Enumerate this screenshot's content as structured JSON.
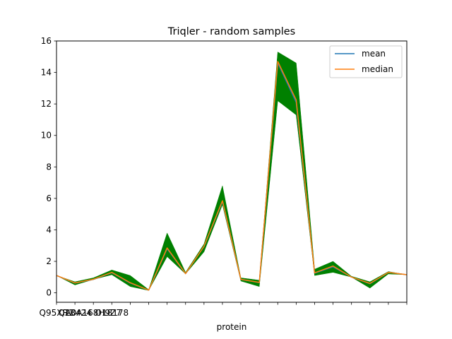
{
  "chart_data": {
    "type": "line",
    "title": "Triqler - random samples",
    "xlabel": "protein",
    "ylabel": "",
    "ylim": [
      -0.6,
      16
    ],
    "yticks": [
      0,
      2,
      4,
      6,
      8,
      10,
      12,
      14,
      16
    ],
    "ytick_labels": [
      "0",
      "2",
      "4",
      "6",
      "8",
      "10",
      "12",
      "14",
      "16"
    ],
    "x": [
      0,
      1,
      2,
      3,
      4,
      5,
      6,
      7,
      8,
      9,
      10,
      11,
      12,
      13,
      14,
      15,
      16,
      17,
      18,
      19
    ],
    "xlim": [
      0,
      19
    ],
    "xtick_labels": [
      "Q95XR1",
      "Q23424",
      "A0A168H9Z7",
      "O18178",
      "",
      "",
      "",
      "",
      "",
      "",
      "",
      "",
      "",
      "",
      "",
      "",
      "",
      "",
      "",
      ""
    ],
    "band": {
      "color": "#008000",
      "lower": [
        1.1,
        0.5,
        0.85,
        1.15,
        0.4,
        0.15,
        2.3,
        1.2,
        2.6,
        5.6,
        0.75,
        0.4,
        12.2,
        11.3,
        1.1,
        1.3,
        1.0,
        0.3,
        1.2,
        1.15
      ],
      "upper": [
        1.1,
        0.7,
        0.95,
        1.45,
        1.1,
        0.2,
        3.8,
        1.3,
        3.1,
        6.8,
        0.95,
        0.8,
        15.3,
        14.6,
        1.5,
        2.0,
        1.05,
        0.7,
        1.35,
        1.15
      ]
    },
    "series": [
      {
        "name": "mean",
        "color": "#1f77b4",
        "values": [
          1.1,
          0.62,
          0.85,
          1.28,
          0.62,
          0.17,
          2.8,
          1.22,
          2.95,
          5.8,
          0.85,
          0.65,
          14.6,
          12.1,
          1.25,
          1.65,
          1.0,
          0.58,
          1.3,
          1.15
        ]
      },
      {
        "name": "median",
        "color": "#ff7f0e",
        "values": [
          1.1,
          0.63,
          0.86,
          1.3,
          0.64,
          0.17,
          2.85,
          1.22,
          2.96,
          5.85,
          0.86,
          0.66,
          14.7,
          12.25,
          1.27,
          1.7,
          1.0,
          0.6,
          1.3,
          1.15
        ]
      }
    ],
    "legend_position": "top-right",
    "grid": false
  }
}
